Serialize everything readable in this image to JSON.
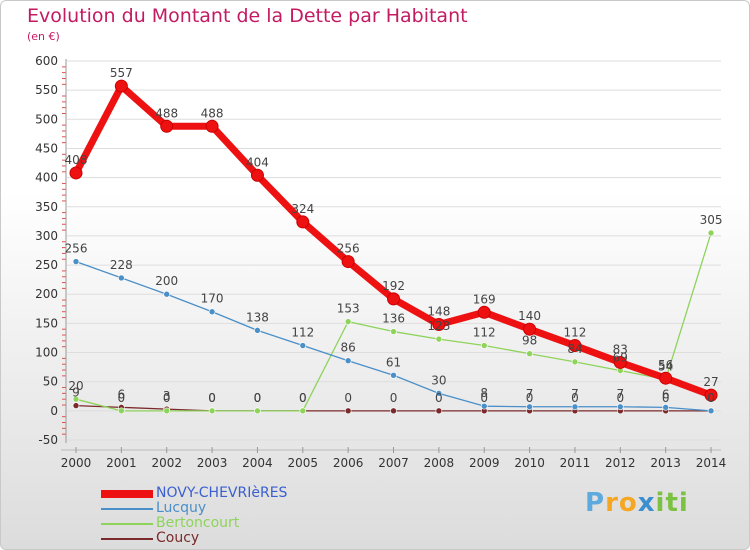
{
  "title": "Evolution du Montant de la Dette par Habitant",
  "subtitle": "(en €)",
  "logo": {
    "text": "Proxiti",
    "letters": [
      "P",
      "r",
      "o",
      "x",
      "i",
      "t",
      "i"
    ],
    "colors": [
      "#5ea9dd",
      "#f5a623",
      "#f5a623",
      "#3a8fd0",
      "#7cc242",
      "#7cc242",
      "#7cc242"
    ]
  },
  "chart_data": {
    "type": "line",
    "x": [
      "2000",
      "2001",
      "2002",
      "2003",
      "2004",
      "2005",
      "2006",
      "2007",
      "2008",
      "2009",
      "2010",
      "2011",
      "2012",
      "2013",
      "2014"
    ],
    "y_ticks": [
      "600",
      "550",
      "500",
      "450",
      "400",
      "350",
      "300",
      "250",
      "200",
      "150",
      "100",
      "50",
      "0",
      "-50"
    ],
    "ylim": [
      -50,
      600
    ],
    "series": [
      {
        "name": "NOVY-CHEVRIèRES",
        "color": "#ee1111",
        "line_width": 7,
        "marker_r": 6,
        "values": [
          408,
          557,
          488,
          488,
          404,
          324,
          256,
          192,
          148,
          169,
          140,
          112,
          83,
          56,
          27
        ],
        "labels": [
          "408",
          "557",
          "488",
          "488",
          "404",
          "324",
          "256",
          "192",
          "148",
          "169",
          "140",
          "112",
          "83",
          "56",
          "27"
        ]
      },
      {
        "name": "Lucquy",
        "color": "#4a8fc8",
        "line_width": 1.3,
        "marker_r": 3,
        "values": [
          256,
          228,
          200,
          170,
          138,
          112,
          86,
          61,
          30,
          8,
          7,
          7,
          7,
          6,
          0
        ],
        "labels": [
          "256",
          "228",
          "200",
          "170",
          "138",
          "112",
          "86",
          "61",
          "30",
          "8",
          "7",
          "7",
          "7",
          "6",
          "0"
        ]
      },
      {
        "name": "Bertoncourt",
        "color": "#8ed35a",
        "line_width": 1.3,
        "marker_r": 3,
        "values": [
          20,
          0,
          0,
          0,
          0,
          0,
          153,
          136,
          123,
          112,
          98,
          84,
          69,
          54,
          305
        ],
        "labels": [
          "20",
          "0",
          "0",
          "0",
          "0",
          "0",
          "153",
          "136",
          "123",
          "112",
          "98",
          "84",
          "69",
          "54",
          "305"
        ]
      },
      {
        "name": "Coucy",
        "color": "#7a2a2a",
        "line_width": 1.3,
        "marker_r": 3,
        "values": [
          9,
          6,
          3,
          0,
          0,
          0,
          0,
          0,
          0,
          0,
          0,
          0,
          0,
          0,
          0
        ],
        "labels": [
          "9",
          "6",
          "3",
          "0",
          "0",
          "0",
          "0",
          "0",
          "0",
          "0",
          "0",
          "0",
          "0",
          "0",
          "0"
        ]
      }
    ]
  }
}
